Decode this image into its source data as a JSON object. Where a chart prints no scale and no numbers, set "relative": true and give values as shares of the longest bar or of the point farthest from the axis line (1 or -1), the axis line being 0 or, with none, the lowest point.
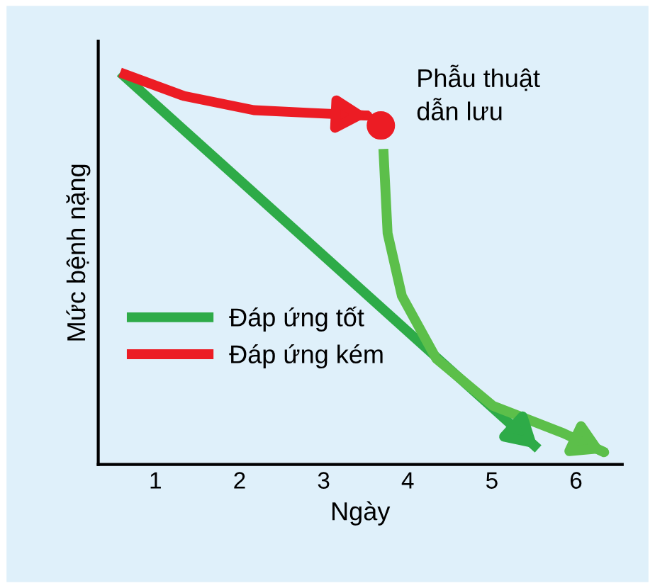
{
  "chart_data": {
    "type": "line",
    "relative": true,
    "xlabel": "Ngày",
    "ylabel": "Mức bệnh nặng",
    "xlim": [
      0.32,
      6.55
    ],
    "xticks": [
      1,
      2,
      3,
      4,
      5,
      6
    ],
    "tick_labels": "x",
    "grid": false,
    "legend": "left",
    "series": [
      {
        "name": "Đáp ứng tốt",
        "color": "#2eab48",
        "x": [
          0.58,
          5.55
        ],
        "values": [
          1.0,
          0.04
        ],
        "marker": "none"
      },
      {
        "name": "Đáp ứng kém",
        "color": "#ec1c24",
        "x": [
          0.58,
          1.34,
          2.17,
          2.84,
          3.54
        ],
        "values": [
          1.0,
          0.94,
          0.904,
          0.897,
          0.89
        ],
        "marker": "none"
      },
      {
        "type": "scatter",
        "color": "#ec1c24",
        "x": [
          3.68
        ],
        "values": [
          0.865
        ],
        "marker": "circle"
      },
      {
        "color": "#5cbf4a",
        "x": [
          3.71,
          3.76,
          3.93,
          4.34,
          5.01,
          5.85,
          6.35
        ],
        "values": [
          0.805,
          0.59,
          0.43,
          0.27,
          0.15,
          0.08,
          0.03
        ],
        "marker": "none"
      }
    ],
    "annotations": [
      {
        "text": "Phẫu thuật\ndẫn lưu",
        "x": 3.68,
        "y": 0.865
      }
    ]
  }
}
